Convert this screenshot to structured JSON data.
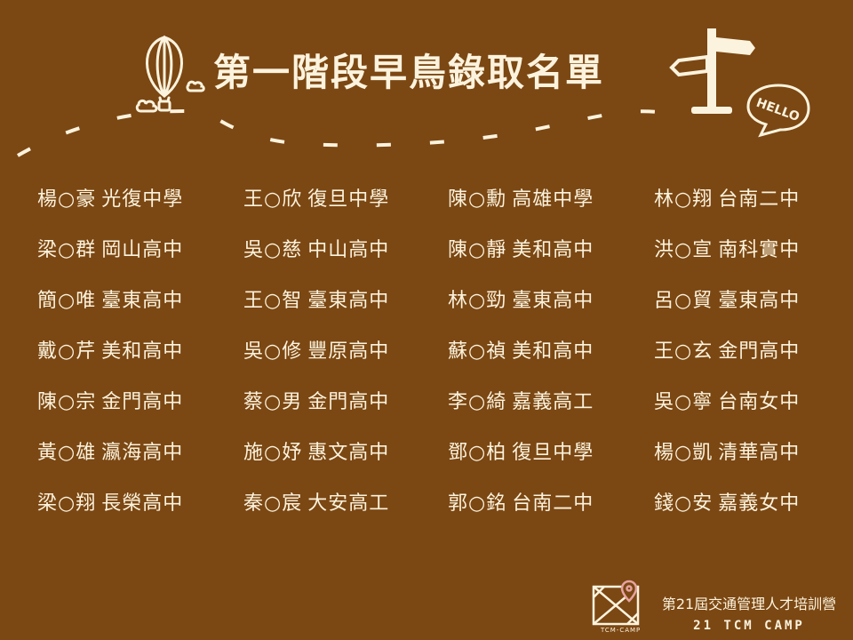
{
  "title": "第一階段早鳥錄取名單",
  "decor": {
    "hello_bubble": "HELLO"
  },
  "names": [
    [
      {
        "name": "楊○豪",
        "school": "光復中學"
      },
      {
        "name": "王○欣",
        "school": "復旦中學"
      },
      {
        "name": "陳○勳",
        "school": "高雄中學"
      },
      {
        "name": "林○翔",
        "school": "台南二中"
      }
    ],
    [
      {
        "name": "梁○群",
        "school": "岡山高中"
      },
      {
        "name": "吳○慈",
        "school": "中山高中"
      },
      {
        "name": "陳○靜",
        "school": "美和高中"
      },
      {
        "name": "洪○宣",
        "school": "南科實中"
      }
    ],
    [
      {
        "name": "簡○唯",
        "school": "臺東高中"
      },
      {
        "name": "王○智",
        "school": "臺東高中"
      },
      {
        "name": "林○勁",
        "school": "臺東高中"
      },
      {
        "name": "呂○貿",
        "school": "臺東高中"
      }
    ],
    [
      {
        "name": "戴○芹",
        "school": "美和高中"
      },
      {
        "name": "吳○修",
        "school": "豐原高中"
      },
      {
        "name": "蘇○禎",
        "school": "美和高中"
      },
      {
        "name": "王○玄",
        "school": "金門高中"
      }
    ],
    [
      {
        "name": "陳○宗",
        "school": "金門高中"
      },
      {
        "name": "蔡○男",
        "school": "金門高中"
      },
      {
        "name": "李○綺",
        "school": "嘉義高工"
      },
      {
        "name": "吳○寧",
        "school": "台南女中"
      }
    ],
    [
      {
        "name": "黃○雄",
        "school": "瀛海高中"
      },
      {
        "name": "施○妤",
        "school": "惠文高中"
      },
      {
        "name": "鄧○柏",
        "school": "復旦中學"
      },
      {
        "name": "楊○凱",
        "school": "清華高中"
      }
    ],
    [
      {
        "name": "梁○翔",
        "school": "長榮高中"
      },
      {
        "name": "秦○宸",
        "school": "大安高工"
      },
      {
        "name": "郭○銘",
        "school": "台南二中"
      },
      {
        "name": "錢○安",
        "school": "嘉義女中"
      }
    ]
  ],
  "footer": {
    "line1": "第21屆交通管理人才培訓營",
    "line2": "21 TCM CAMP",
    "logo_text": "TCM-CAMP"
  }
}
